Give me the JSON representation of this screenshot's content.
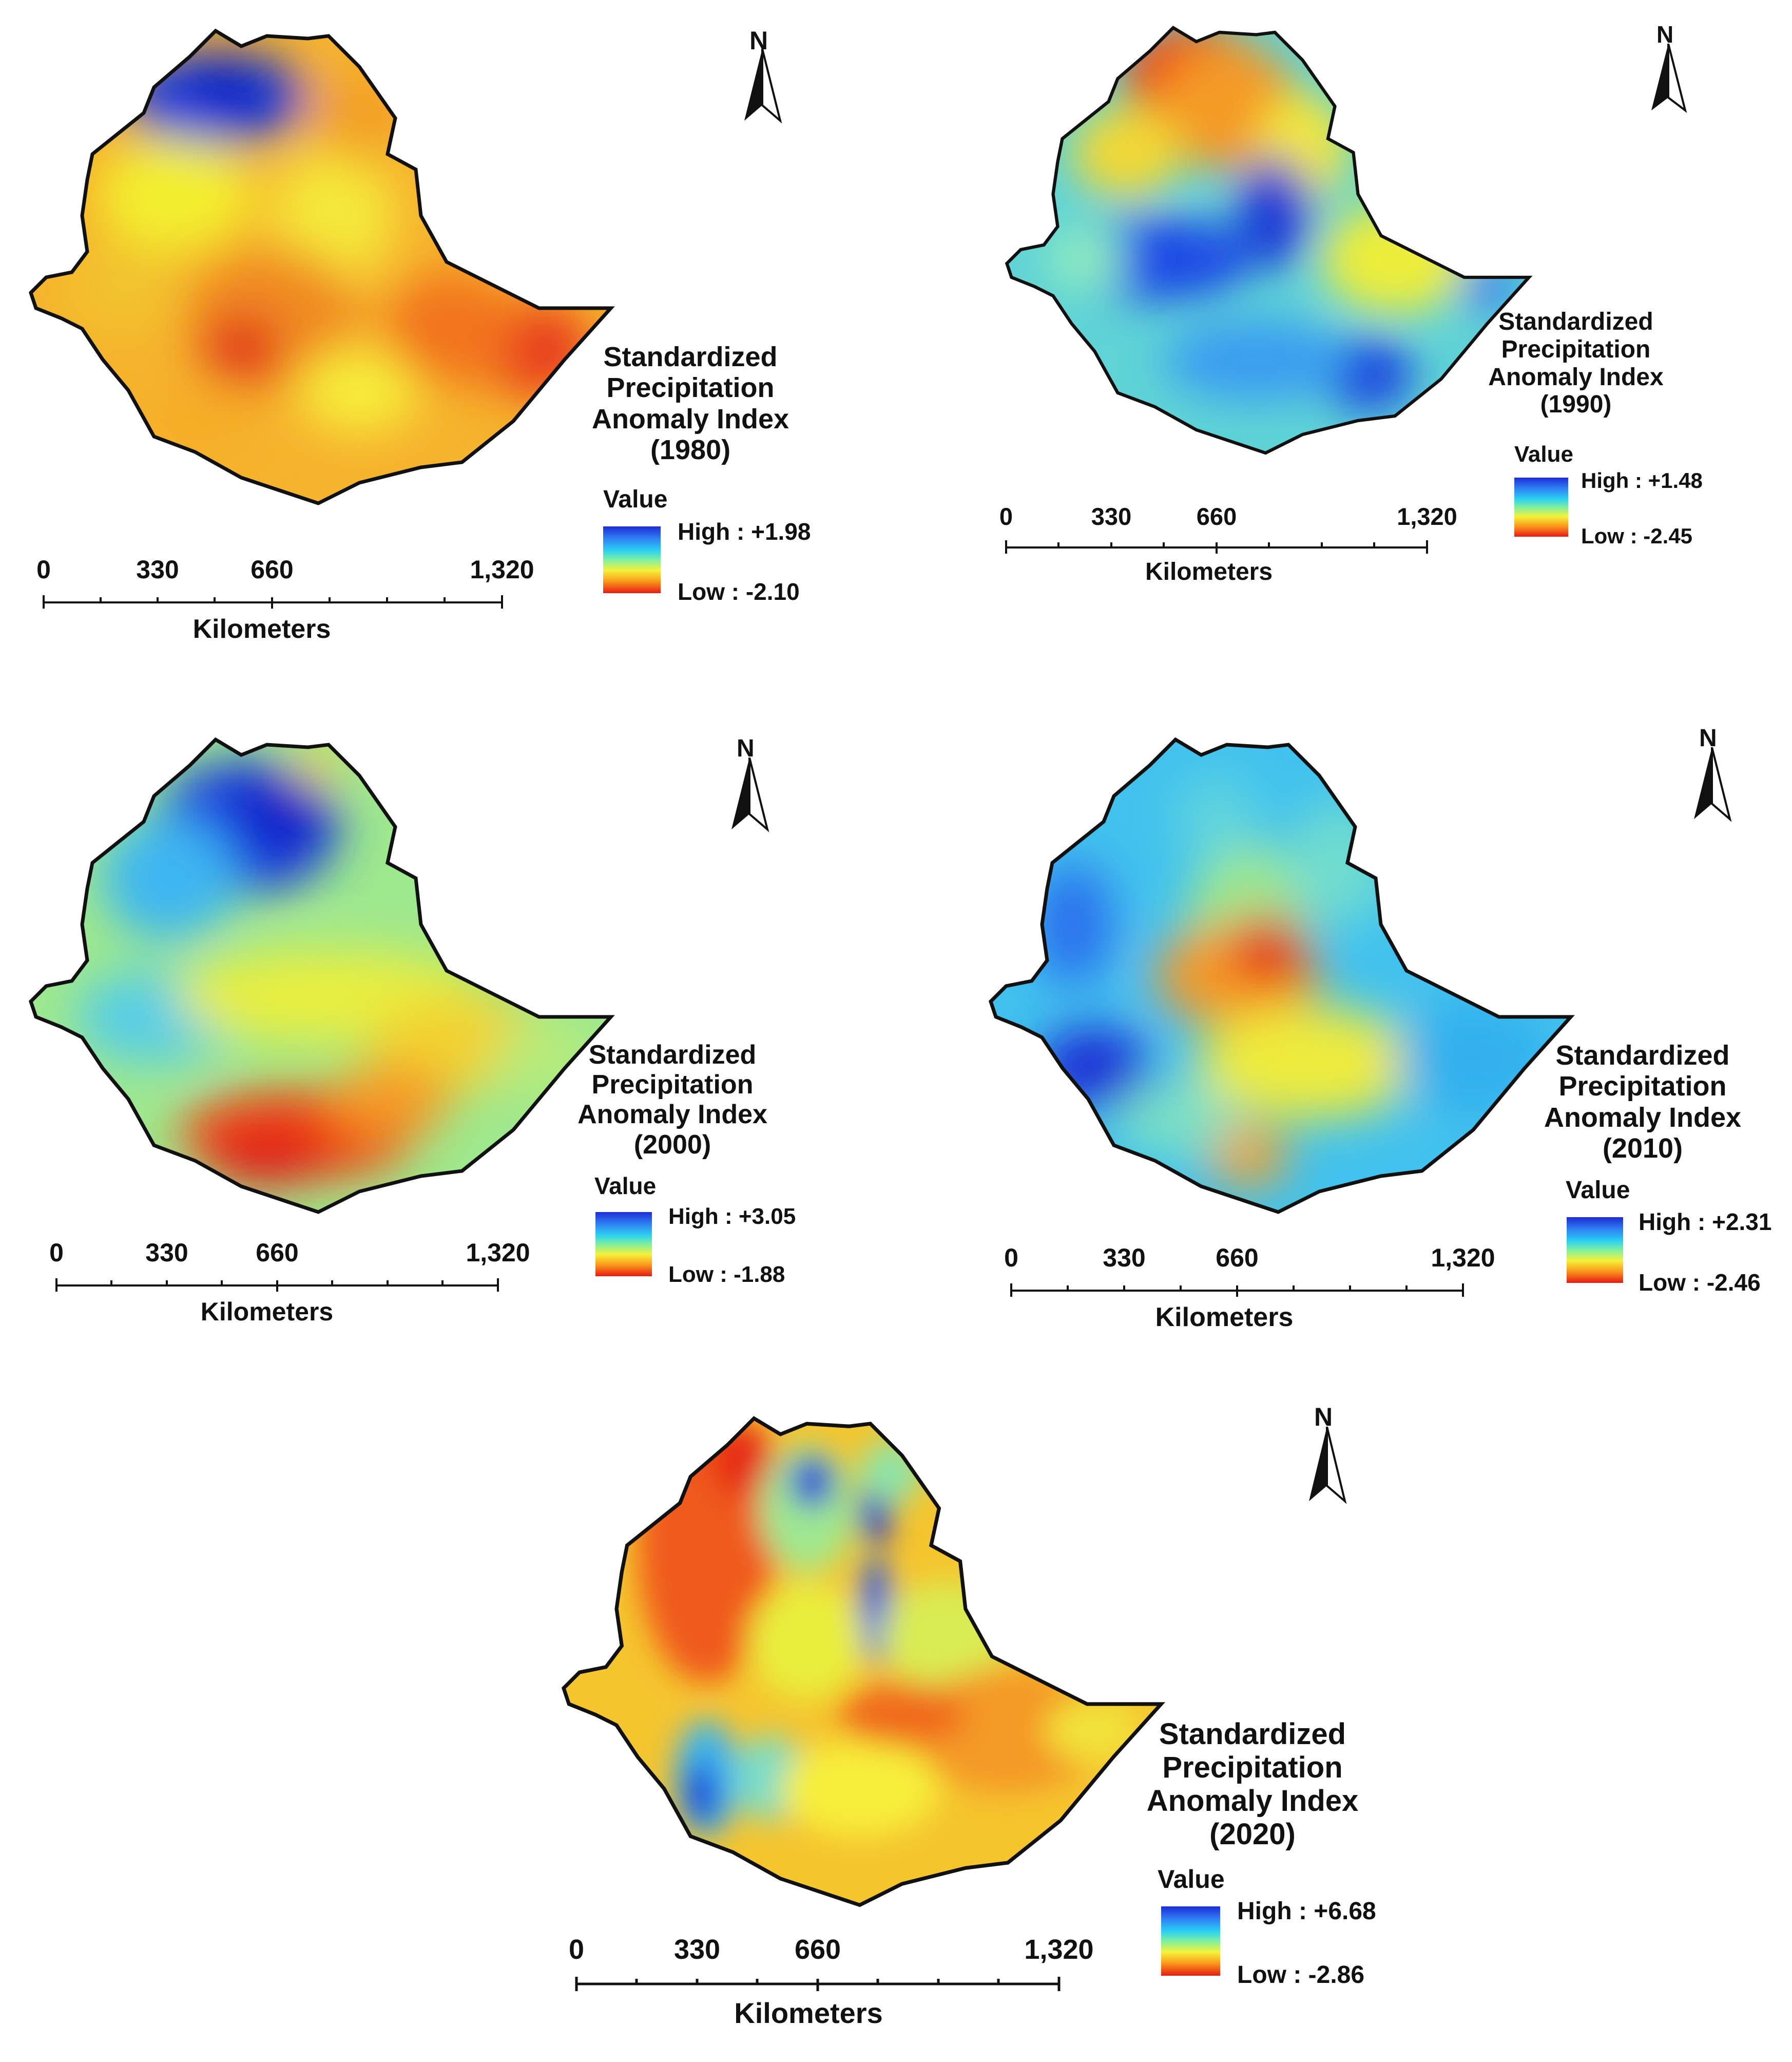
{
  "maps": [
    {
      "year": "(1980)",
      "title_lines": [
        "Standardized",
        "Precipitation",
        "Anomaly Index"
      ],
      "legend_value_label": "Value",
      "high_label": "High : +1.98",
      "low_label": "Low : -2.10",
      "high_value": 1.98,
      "low_value": -2.1,
      "scale_ticks": [
        "0",
        "330",
        "660",
        "1,320"
      ],
      "scale_unit": "Kilometers",
      "north_label": "N"
    },
    {
      "year": "(1990)",
      "title_lines": [
        "Standardized",
        "Precipitation",
        "Anomaly Index"
      ],
      "legend_value_label": "Value",
      "high_label": "High : +1.48",
      "low_label": "Low : -2.45",
      "high_value": 1.48,
      "low_value": -2.45,
      "scale_ticks": [
        "0",
        "330",
        "660",
        "1,320"
      ],
      "scale_unit": "Kilometers",
      "north_label": "N"
    },
    {
      "year": "(2000)",
      "title_lines": [
        "Standardized",
        "Precipitation",
        "Anomaly Index"
      ],
      "legend_value_label": "Value",
      "high_label": "High : +3.05",
      "low_label": "Low : -1.88",
      "high_value": 3.05,
      "low_value": -1.88,
      "scale_ticks": [
        "0",
        "330",
        "660",
        "1,320"
      ],
      "scale_unit": "Kilometers",
      "north_label": "N"
    },
    {
      "year": "(2010)",
      "title_lines": [
        "Standardized",
        "Precipitation",
        "Anomaly Index"
      ],
      "legend_value_label": "Value",
      "high_label": "High : +2.31",
      "low_label": "Low : -2.46",
      "high_value": 2.31,
      "low_value": -2.46,
      "scale_ticks": [
        "0",
        "330",
        "660",
        "1,320"
      ],
      "scale_unit": "Kilometers",
      "north_label": "N"
    },
    {
      "year": "(2020)",
      "title_lines": [
        "Standardized",
        "Precipitation",
        "Anomaly Index"
      ],
      "legend_value_label": "Value",
      "high_label": "High : +6.68",
      "low_label": "Low : -2.86",
      "high_value": 6.68,
      "low_value": -2.86,
      "scale_ticks": [
        "0",
        "330",
        "660",
        "1,320"
      ],
      "scale_unit": "Kilometers",
      "north_label": "N"
    }
  ],
  "colors": {
    "high": "#1d2bd6",
    "mid": "#f4f23a",
    "low": "#e61a16",
    "outline": "#111111"
  }
}
